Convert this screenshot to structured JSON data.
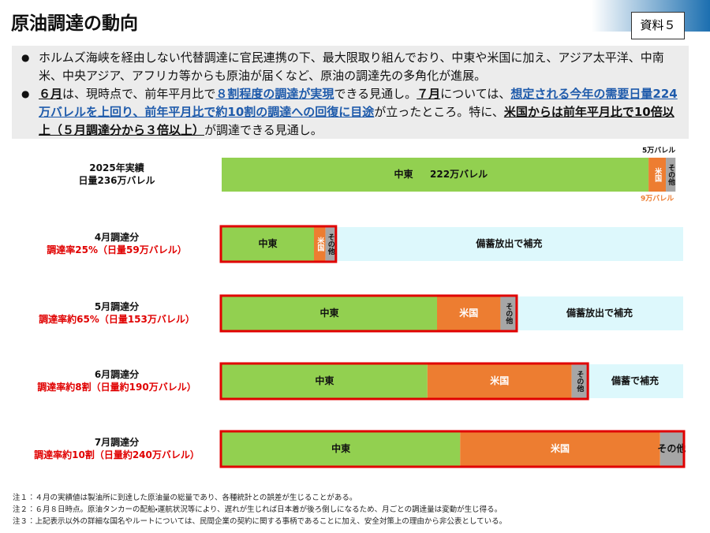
{
  "header": {
    "title": "原油調達の動向",
    "doc_label": "資料５"
  },
  "bullets": [
    [
      {
        "text": "ホルムズ海峡を経由しない代替調達に官民連携の下、最大限取り組んでおり、中東や米国に加え、アジア太平洋、中南米、中央アジア、アフリカ等からも原油が届くなど、原油の調達先の多角化が進展。",
        "emph": "none"
      }
    ],
    [
      {
        "text": "６月",
        "emph": "bold"
      },
      {
        "text": "は、現時点で、前年平月比で",
        "emph": "none"
      },
      {
        "text": "８割程度の調達が実現",
        "emph": "blue"
      },
      {
        "text": "できる見通し。",
        "emph": "none"
      },
      {
        "text": "７月",
        "emph": "bold"
      },
      {
        "text": "については、",
        "emph": "none"
      },
      {
        "text": "想定される今年の需要日量224万バレルを上回り、前年平月比で約10割の調達への回復に目途",
        "emph": "blue"
      },
      {
        "text": "が立ったところ。特に、",
        "emph": "none"
      },
      {
        "text": "米国からは前年平月比で10倍以上（５月調達分から３倍以上）",
        "emph": "bold"
      },
      {
        "text": "が調達できる見通し。",
        "emph": "none"
      }
    ]
  ],
  "chart_data": {
    "type": "stacked-bar",
    "categories": [
      "2025年実績",
      "4月調達分",
      "5月調達分",
      "6月調達分",
      "7月調達分"
    ],
    "category_notes": [
      "日量236万バレル",
      "調達率25%（日量59万バレル）",
      "調達率約65%（日量153万バレル）",
      "調達率約8割（日量約190万バレル）",
      "調達率約10割（日量約240万バレル）"
    ],
    "series": [
      {
        "name": "中東",
        "color": "#92d050",
        "values": [
          222,
          48,
          112,
          107,
          124
        ],
        "value_labels": [
          "222万バレル",
          null,
          null,
          null,
          null
        ]
      },
      {
        "name": "米国",
        "color": "#ed7d31",
        "values": [
          9,
          6,
          33,
          75,
          104
        ],
        "value_labels": [
          "9万バレル",
          null,
          null,
          null,
          null
        ]
      },
      {
        "name": "その他",
        "color": "#a6a6a6",
        "values": [
          5,
          5,
          8,
          8,
          12
        ],
        "value_labels": [
          "5万バレル",
          null,
          null,
          null,
          null
        ]
      }
    ],
    "fill_labels": [
      null,
      "備蓄放出で補充",
      "備蓄放出で補充",
      "備蓄で補充",
      null
    ],
    "fill_color": "#ddf8fc",
    "highlight_color": "#e00000",
    "xlim": [
      0,
      240
    ]
  },
  "notes": [
    "注１：４月の実績値は製油所に到達した原油量の総量であり、各種統計との誤差が生じることがある。",
    "注２：６月８日時点。原油タンカーの配船・運航状況等により、遅れが生じれば日本着が後ろ倒しになるため、月ごとの調達量は変動が生じ得る。",
    "注３：上記表示以外の詳細な国名やルートについては、民間企業の契約に関する事柄であることに加え、安全対策上の理由から非公表としている。"
  ]
}
